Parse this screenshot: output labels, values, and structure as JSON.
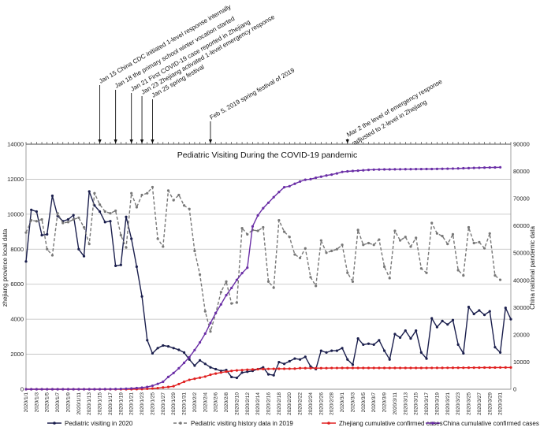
{
  "chart_data": {
    "type": "line",
    "title": "Pediatric Visiting During the COVID-19 pandemic",
    "ylabel_left": "zhejiang province local data",
    "ylabel_right": "China national pandemic data",
    "ylim_left": [
      0,
      14000
    ],
    "ylim_right": [
      0,
      90000
    ],
    "yticks_left": [
      0,
      2000,
      4000,
      6000,
      8000,
      10000,
      12000,
      14000
    ],
    "yticks_right": [
      0,
      10000,
      20000,
      30000,
      40000,
      50000,
      60000,
      70000,
      80000,
      90000
    ],
    "x_tick_labels": [
      "2020/1/1",
      "2020/1/3",
      "2020/1/5",
      "2020/1/7",
      "2020/1/9",
      "2020/1/11",
      "2020/1/13",
      "2020/1/15",
      "2020/1/17",
      "2020/1/19",
      "2020/1/21",
      "2020/1/23",
      "2020/1/25",
      "2020/1/27",
      "2020/1/29",
      "2020/1/31",
      "2020/2/2",
      "2020/2/4",
      "2020/2/6",
      "2020/2/8",
      "2020/2/10",
      "2020/2/12",
      "2020/2/14",
      "2020/2/16",
      "2020/2/18",
      "2020/2/20",
      "2020/2/22",
      "2020/2/24",
      "2020/2/26",
      "2020/2/28",
      "2020/3/1",
      "2020/3/3",
      "2020/3/5",
      "2020/3/7",
      "2020/3/9",
      "2020/3/11",
      "2020/3/13",
      "2020/3/15",
      "2020/3/17",
      "2020/3/19",
      "2020/3/21",
      "2020/3/23",
      "2020/3/25",
      "2020/3/27",
      "2020/3/29",
      "2020/3/31"
    ],
    "grid": true,
    "legend_position": "bottom",
    "series": [
      {
        "name": "Pediatric visiting in 2020",
        "axis": "left",
        "color": "#1b1f4d",
        "dash": "solid",
        "values": [
          7300,
          10250,
          10150,
          8800,
          8850,
          11050,
          9900,
          9600,
          9700,
          9950,
          8000,
          7600,
          11300,
          10500,
          10150,
          9550,
          9600,
          7050,
          7100,
          9850,
          8600,
          7000,
          5300,
          2800,
          2050,
          2350,
          2500,
          2450,
          2350,
          2250,
          2100,
          1700,
          1350,
          1650,
          1450,
          1250,
          1150,
          1050,
          1100,
          700,
          650,
          950,
          1000,
          1050,
          1150,
          1250,
          850,
          800,
          1550,
          1450,
          1600,
          1750,
          1700,
          1850,
          1300,
          1150,
          2200,
          2100,
          2200,
          2200,
          2350,
          1700,
          1400,
          2900,
          2550,
          2600,
          2550,
          2800,
          2200,
          1700,
          3150,
          2950,
          3350,
          2900,
          3350,
          2100,
          1750,
          4050,
          3550,
          3900,
          3700,
          3950,
          2550,
          2050,
          4700,
          4300,
          4500,
          4250,
          4450,
          2400,
          2100,
          4650,
          4000
        ]
      },
      {
        "name": "Pediatric visiting history data in 2019",
        "axis": "left",
        "color": "#777777",
        "dash": "dashed",
        "values": [
          8950,
          9650,
          9600,
          9700,
          8000,
          7650,
          10050,
          9500,
          9550,
          9700,
          9800,
          9250,
          8300,
          11200,
          10550,
          10150,
          10050,
          10200,
          8800,
          8100,
          11200,
          10400,
          11100,
          11200,
          11550,
          8600,
          8150,
          11350,
          10800,
          11100,
          10500,
          10300,
          7900,
          6550,
          4450,
          3300,
          4350,
          5550,
          6150,
          4900,
          4950,
          9200,
          8850,
          9100,
          9050,
          9250,
          6150,
          5800,
          9650,
          9000,
          8700,
          7700,
          7500,
          8050,
          6400,
          5900,
          8500,
          7800,
          7900,
          8000,
          8250,
          6650,
          6150,
          9100,
          8250,
          8350,
          8250,
          8550,
          7000,
          6350,
          9050,
          8500,
          8700,
          8150,
          8650,
          6900,
          6650,
          9500,
          8900,
          8750,
          8300,
          8850,
          6800,
          6500,
          9250,
          8350,
          8400,
          8050,
          8900,
          6500,
          6250
        ]
      },
      {
        "name": "Zhejiang cumulative confirmed cases",
        "axis": "left",
        "color": "#e02020",
        "dash": "solid",
        "values": [
          0,
          0,
          0,
          0,
          0,
          0,
          0,
          0,
          0,
          0,
          0,
          0,
          0,
          0,
          0,
          0,
          0,
          0,
          0,
          0,
          0,
          5,
          10,
          27,
          43,
          62,
          104,
          128,
          173,
          296,
          428,
          538,
          599,
          661,
          724,
          829,
          895,
          954,
          1006,
          1048,
          1075,
          1092,
          1117,
          1131,
          1145,
          1155,
          1162,
          1167,
          1171,
          1172,
          1174,
          1175,
          1205,
          1205,
          1205,
          1205,
          1205,
          1206,
          1213,
          1213,
          1215,
          1215,
          1215,
          1215,
          1215,
          1215,
          1215,
          1215,
          1215,
          1215,
          1215,
          1215,
          1215,
          1216,
          1217,
          1217,
          1218,
          1219,
          1221,
          1222,
          1224,
          1226,
          1227,
          1229,
          1231,
          1233,
          1235,
          1237,
          1238,
          1240,
          1242,
          1243,
          1244
        ]
      },
      {
        "name": "China cumulative confirmed cases",
        "axis": "right",
        "color": "#6a2ea6",
        "dash": "solid",
        "values": [
          0,
          0,
          0,
          0,
          0,
          0,
          0,
          0,
          0,
          0,
          0,
          0,
          0,
          0,
          0,
          41,
          45,
          62,
          121,
          198,
          291,
          440,
          571,
          830,
          1287,
          1975,
          2744,
          4515,
          5974,
          7711,
          9692,
          11791,
          14380,
          17205,
          20438,
          24324,
          28018,
          31161,
          34546,
          37198,
          40171,
          42638,
          44653,
          59804,
          63851,
          66492,
          68500,
          70548,
          72436,
          74185,
          74576,
          75465,
          76288,
          76936,
          77150,
          77658,
          78064,
          78497,
          78824,
          79251,
          79824,
          80026,
          80151,
          80270,
          80409,
          80552,
          80651,
          80695,
          80735,
          80754,
          80778,
          80793,
          80813,
          80824,
          80844,
          80860,
          80881,
          80894,
          80928,
          80967,
          81008,
          81054,
          81093,
          81171,
          81218,
          81285,
          81340,
          81394,
          81439,
          81470,
          81518
        ]
      }
    ],
    "annotations": [
      {
        "text": "Jan 15 China CDC initiated 1-level response internally",
        "index": 14
      },
      {
        "text": "Jan 18 the primary school winter vocation started",
        "index": 17
      },
      {
        "text": "Jan 21 First COVID-19 case reported in Zhejiang",
        "index": 20
      },
      {
        "text": "Jan 23 Zhejiang activated 1-level emergency response",
        "index": 22
      },
      {
        "text": "Jan 25 spring festival",
        "index": 24
      },
      {
        "text": "Feb 5, 2019 spring festival of 2019",
        "index": 35
      },
      {
        "text": "Mar 2 the level of emergency response",
        "text2": "adjusted to 2-level in Zhejiang",
        "index": 61
      }
    ]
  }
}
